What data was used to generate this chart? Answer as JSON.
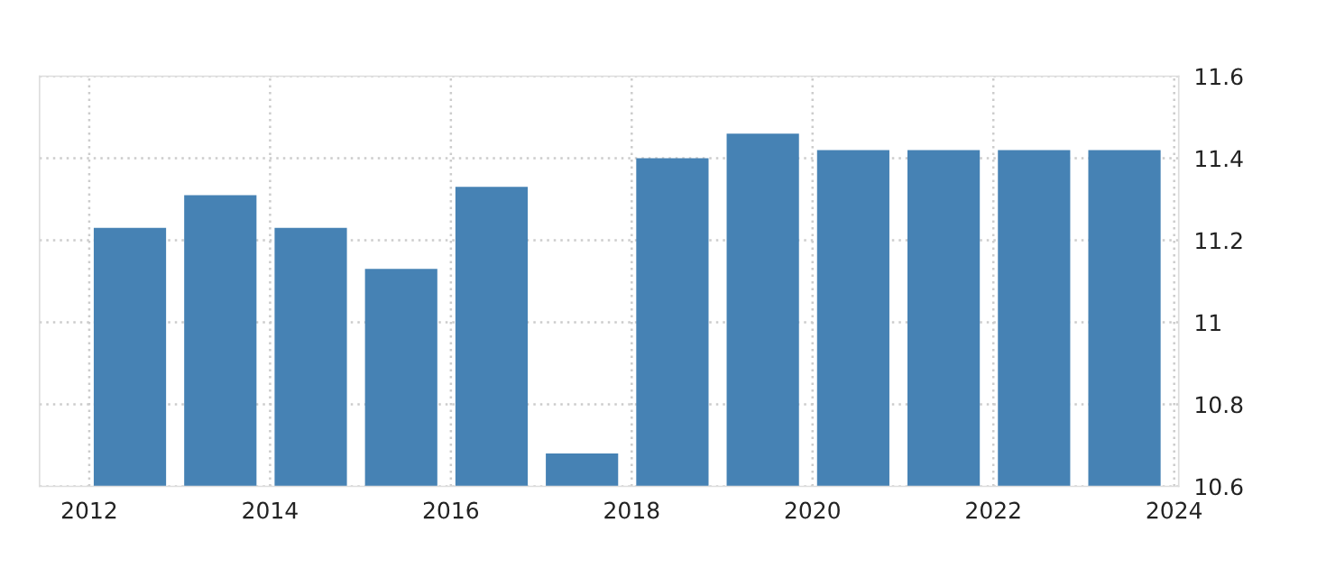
{
  "chart_data": {
    "type": "bar",
    "x": [
      2012.45,
      2013.45,
      2014.45,
      2015.45,
      2016.45,
      2017.45,
      2018.45,
      2019.45,
      2020.45,
      2021.45,
      2022.45,
      2023.45
    ],
    "values": [
      11.23,
      11.31,
      11.23,
      11.13,
      11.33,
      10.68,
      11.4,
      11.46,
      11.42,
      11.42,
      11.42,
      11.42
    ],
    "color": "#4682b4",
    "xlim": [
      2011.45,
      2024.05
    ],
    "xticks": [
      2012,
      2014,
      2016,
      2018,
      2020,
      2022,
      2024
    ],
    "ylim": [
      10.6,
      11.6
    ],
    "yticks": [
      10.6,
      10.8,
      11,
      11.2,
      11.4,
      11.6
    ],
    "grid": true
  }
}
